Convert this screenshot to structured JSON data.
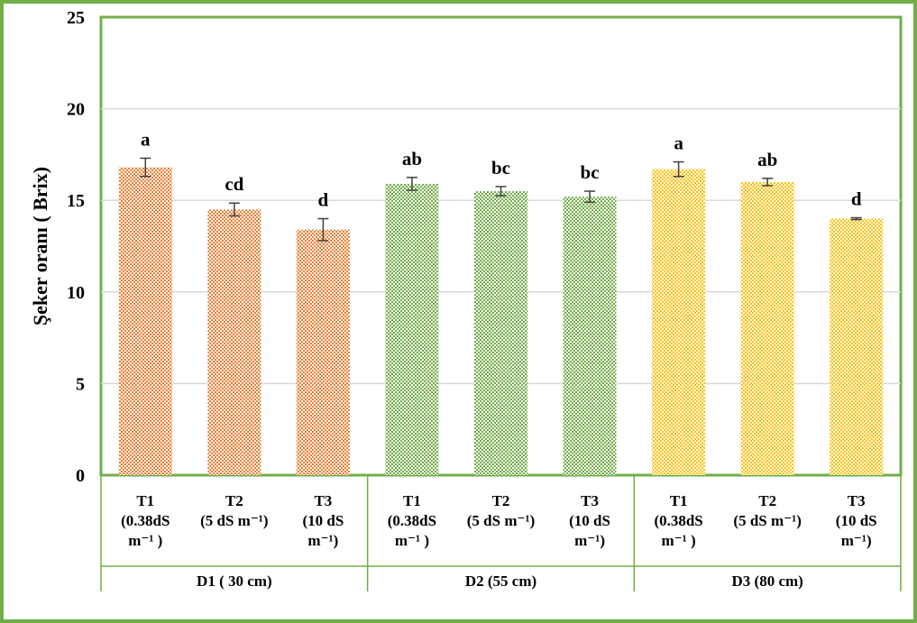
{
  "chart_data": {
    "type": "bar",
    "title": "",
    "xlabel": "",
    "ylabel": "Şeker oranı ( Brix)",
    "ylim": [
      0,
      25
    ],
    "yticks": [
      "0",
      "5",
      "10",
      "15",
      "20",
      "25"
    ],
    "grid": true,
    "legend": "none",
    "groups": [
      {
        "label": "D1 ( 30 cm)",
        "color": "#ED7D31"
      },
      {
        "label": "D2 (55 cm)",
        "color": "#70AD47"
      },
      {
        "label": "D3 (80 cm)",
        "color": "#FFC000"
      }
    ],
    "categories": [
      [
        "T1",
        "(0.38dS",
        "m⁻¹ )"
      ],
      [
        "T2",
        "(5 dS m⁻¹)"
      ],
      [
        "T3",
        "(10 dS",
        "m⁻¹)"
      ],
      [
        "T1",
        "(0.38dS",
        "m⁻¹ )"
      ],
      [
        "T2",
        "(5 dS m⁻¹)"
      ],
      [
        "T3",
        "(10 dS",
        "m⁻¹)"
      ],
      [
        "T1",
        "(0.38dS",
        "m⁻¹ )"
      ],
      [
        "T2",
        "(5 dS m⁻¹)"
      ],
      [
        "T3",
        "(10 dS",
        "m⁻¹)"
      ]
    ],
    "values": [
      16.8,
      14.5,
      13.4,
      15.9,
      15.5,
      15.2,
      16.7,
      16.0,
      14.0
    ],
    "errors": [
      0.5,
      0.35,
      0.6,
      0.35,
      0.25,
      0.3,
      0.4,
      0.2,
      0.05
    ],
    "letters": [
      "a",
      "cd",
      "d",
      "ab",
      "bc",
      "bc",
      "a",
      "ab",
      "d"
    ],
    "frame_color": "#70AD47"
  }
}
